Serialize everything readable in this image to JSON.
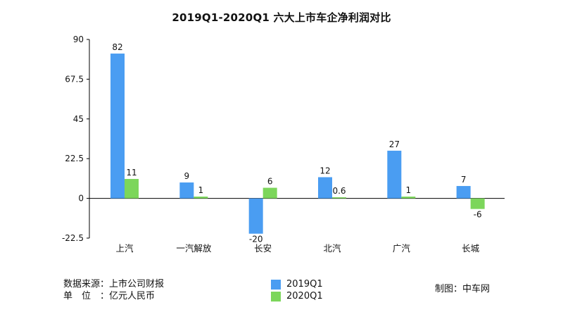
{
  "colors": {
    "series_2019": "#4a9df2",
    "series_2020": "#7cd65b",
    "axis": "#000000"
  },
  "footer": {
    "source_line": "数据来源：上市公司财报",
    "unit_line": "单　位　：亿元人民币",
    "credit": "制图：中车网"
  },
  "chart_data": {
    "type": "bar",
    "title": "2019Q1-2020Q1 六大上市车企净利润对比",
    "xlabel": "",
    "ylabel": "",
    "ylim": [
      -22.5,
      90
    ],
    "yticks": [
      "90",
      "67.5",
      "45",
      "22.5",
      "0",
      "-22.5"
    ],
    "ytick_values": [
      90,
      67.5,
      45,
      22.5,
      0,
      -22.5
    ],
    "categories": [
      "上汽",
      "一汽解放",
      "长安",
      "北汽",
      "广汽",
      "长城"
    ],
    "series": [
      {
        "name": "2019Q1",
        "values": [
          82,
          9,
          -20,
          12,
          27,
          7
        ],
        "labels": [
          "82",
          "9",
          "-20",
          "12",
          "27",
          "7"
        ]
      },
      {
        "name": "2020Q1",
        "values": [
          11,
          1,
          6,
          0.6,
          1,
          -6
        ],
        "labels": [
          "11",
          "1",
          "6",
          "0.6",
          "1",
          "-6"
        ]
      }
    ],
    "grid": false,
    "legend": "bottom-center"
  }
}
